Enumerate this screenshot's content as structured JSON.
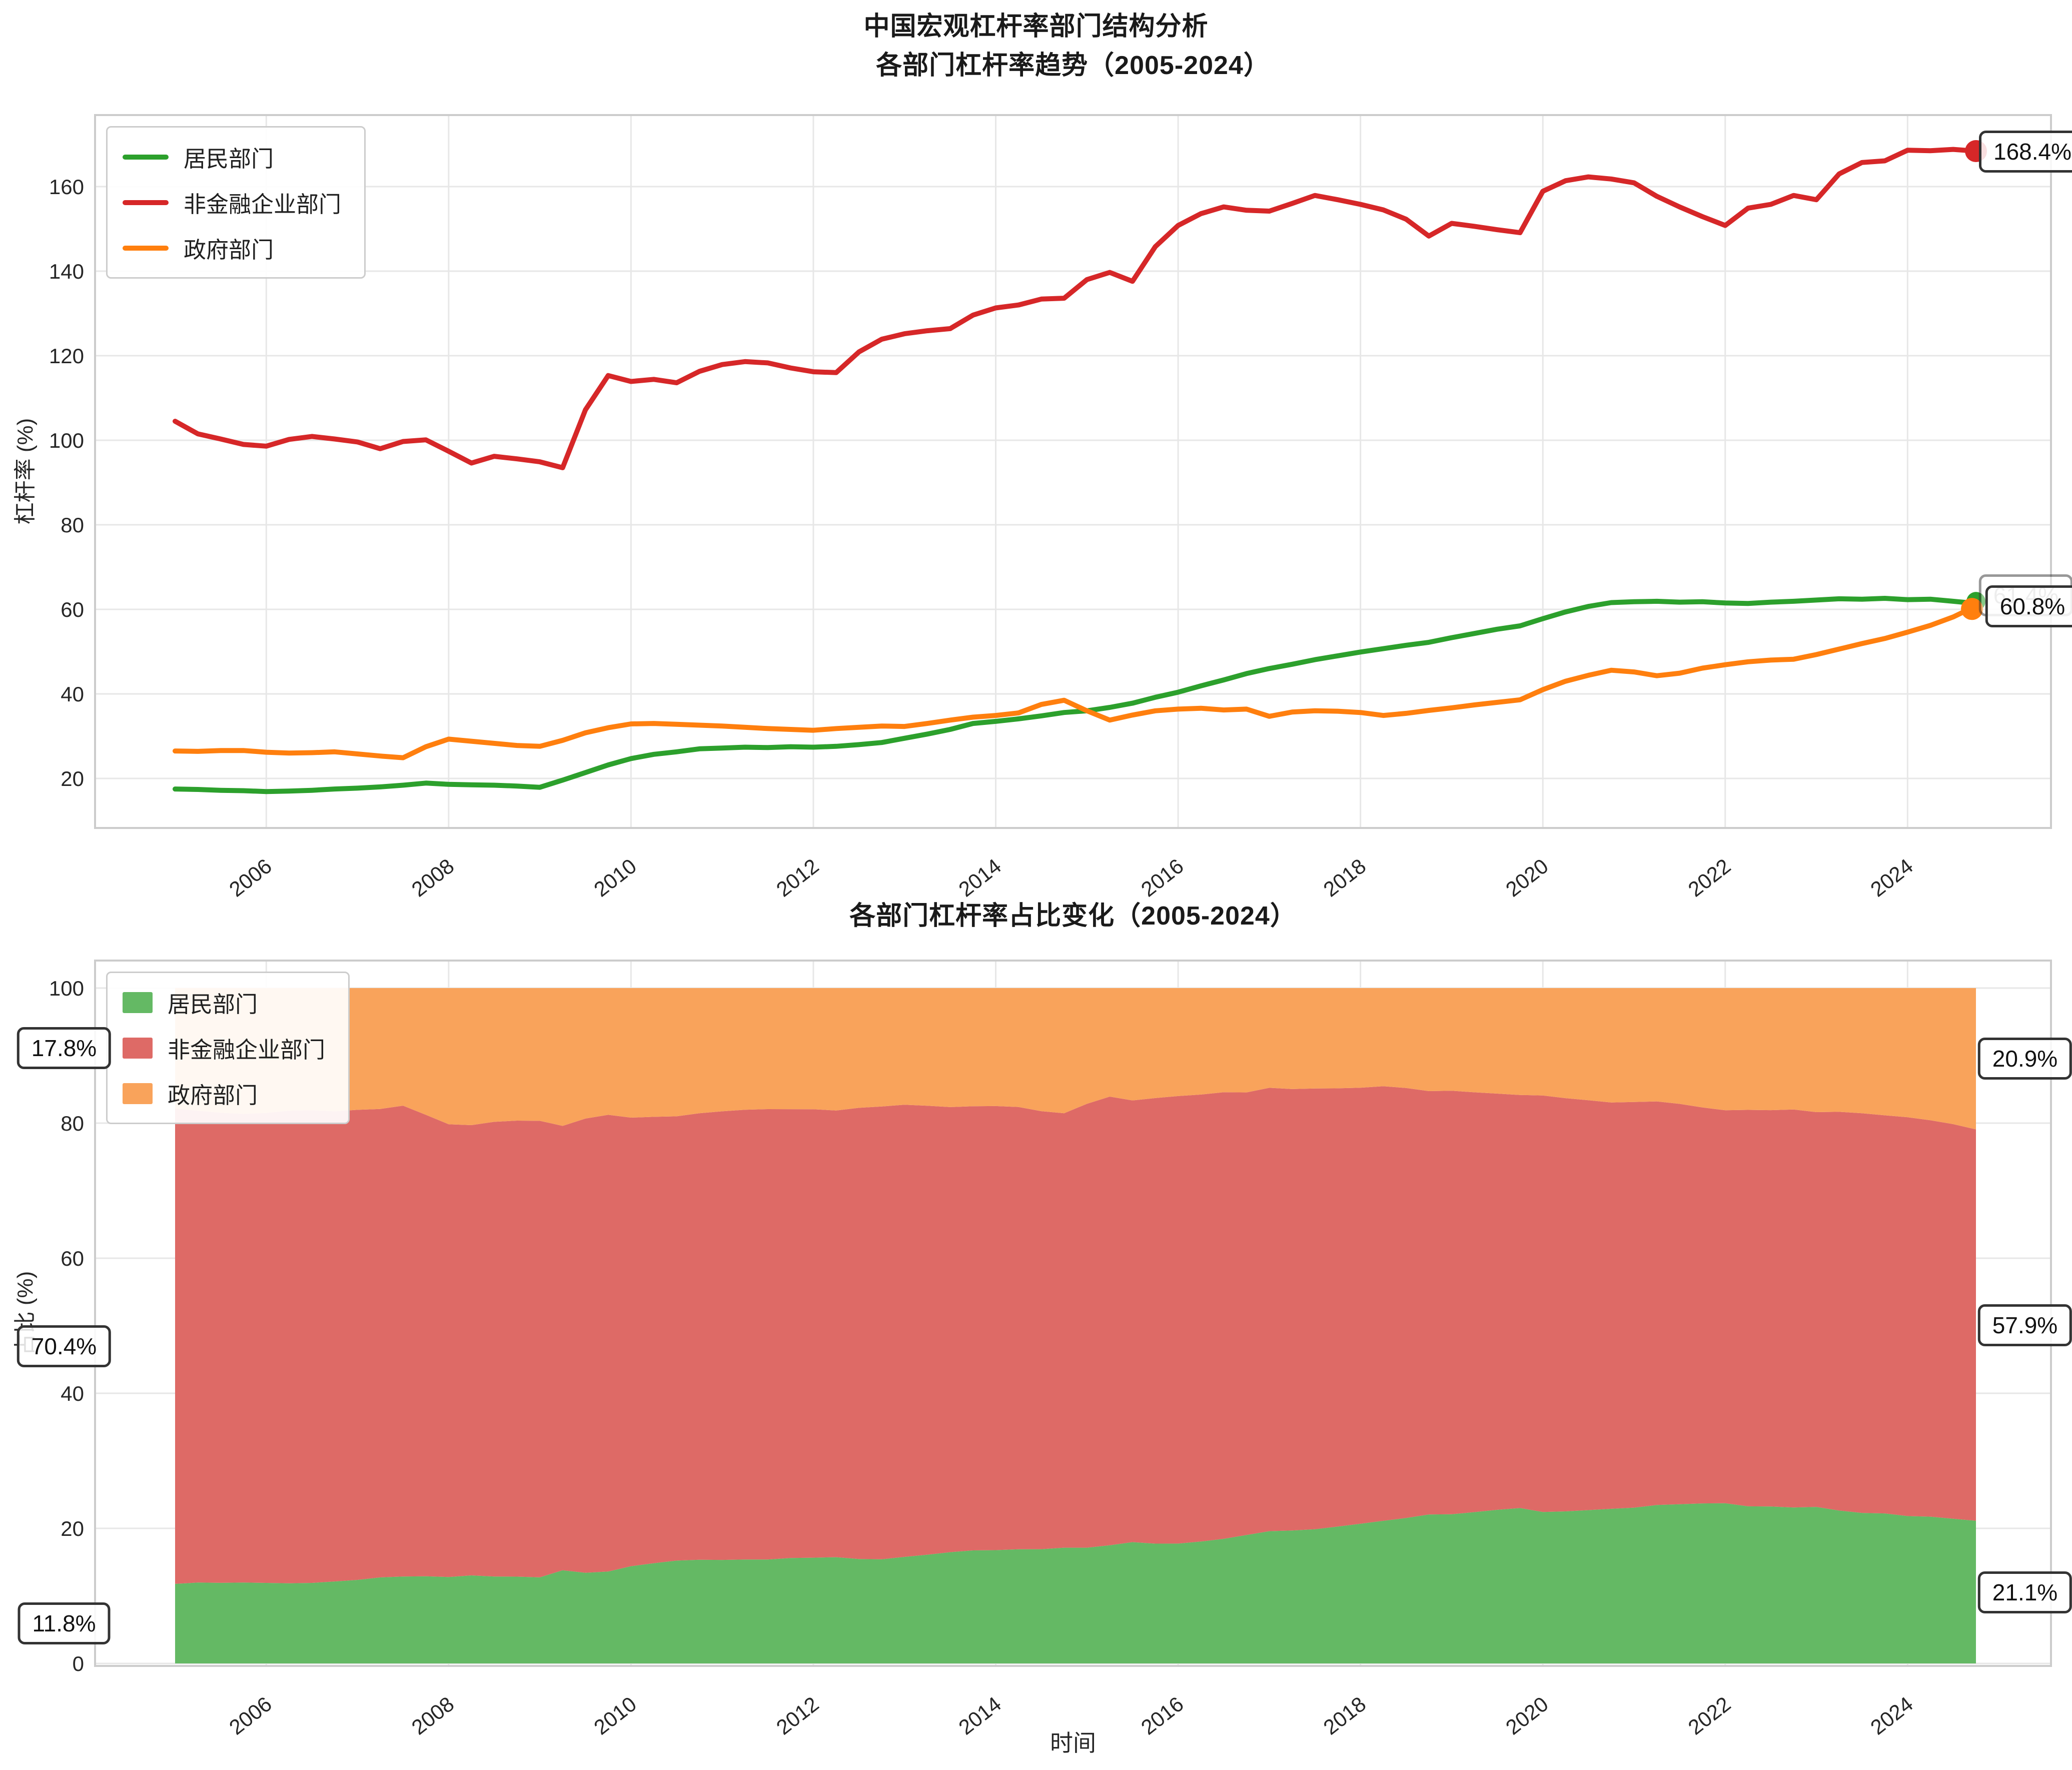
{
  "suptitle": "中国宏观杠杆率部门结构分析",
  "chart_data": [
    {
      "type": "line",
      "title": "各部门杠杆率趋势（2005-2024）",
      "ylabel": "杠杆率 (%)",
      "x_start": 2005.0,
      "x_step": 0.25,
      "x_ticks": [
        2006,
        2008,
        2010,
        2012,
        2014,
        2016,
        2018,
        2020,
        2022,
        2024
      ],
      "y_ticks": [
        20,
        40,
        60,
        80,
        100,
        120,
        140,
        160
      ],
      "xlim": [
        2004.12,
        2025.57
      ],
      "ylim": [
        8.3,
        176.9
      ],
      "grid": true,
      "legend_position": "upper-left",
      "series": [
        {
          "name": "居民部门",
          "color": "#2ca02c",
          "values": [
            17.5,
            17.4,
            17.2,
            17.1,
            16.9,
            17.0,
            17.2,
            17.5,
            17.7,
            18.0,
            18.4,
            18.9,
            18.6,
            18.5,
            18.4,
            18.2,
            17.9,
            19.6,
            21.4,
            23.2,
            24.7,
            25.7,
            26.3,
            27.0,
            27.2,
            27.4,
            27.3,
            27.5,
            27.4,
            27.6,
            28.0,
            28.5,
            29.5,
            30.5,
            31.6,
            33.0,
            33.5,
            34.1,
            34.8,
            35.6,
            36.0,
            36.8,
            37.8,
            39.2,
            40.4,
            41.9,
            43.3,
            44.8,
            46.0,
            47.0,
            48.1,
            49.0,
            49.9,
            50.7,
            51.5,
            52.2,
            53.3,
            54.3,
            55.3,
            56.1,
            57.8,
            59.4,
            60.7,
            61.6,
            61.8,
            61.9,
            61.7,
            61.8,
            61.5,
            61.4,
            61.7,
            61.9,
            62.2,
            62.5,
            62.4,
            62.6,
            62.3,
            62.4,
            61.9,
            61.4
          ]
        },
        {
          "name": "非金融企业部门",
          "color": "#d62728",
          "values": [
            104.5,
            101.5,
            100.3,
            99.0,
            98.6,
            100.2,
            100.9,
            100.3,
            99.6,
            98.0,
            99.7,
            100.1,
            97.4,
            94.6,
            96.2,
            95.6,
            94.9,
            93.5,
            107.2,
            115.3,
            113.9,
            114.4,
            113.6,
            116.3,
            117.9,
            118.6,
            118.3,
            117.1,
            116.2,
            116.0,
            120.9,
            123.9,
            125.2,
            125.9,
            126.4,
            129.6,
            131.3,
            132.0,
            133.4,
            133.6,
            138.0,
            139.7,
            137.6,
            145.8,
            150.8,
            153.6,
            155.2,
            154.4,
            154.2,
            156.0,
            157.9,
            156.9,
            155.8,
            154.5,
            152.3,
            148.3,
            151.3,
            150.6,
            149.8,
            149.1,
            158.9,
            161.4,
            162.3,
            161.8,
            160.9,
            157.7,
            155.2,
            152.9,
            150.8,
            154.9,
            155.8,
            157.9,
            156.9,
            163.0,
            165.7,
            166.1,
            168.6,
            168.5,
            168.8,
            168.4
          ]
        },
        {
          "name": "政府部门",
          "color": "#ff7f0e",
          "values": [
            26.5,
            26.4,
            26.6,
            26.6,
            26.2,
            26.0,
            26.1,
            26.3,
            25.8,
            25.3,
            24.9,
            27.5,
            29.3,
            28.8,
            28.3,
            27.8,
            27.6,
            29.0,
            30.8,
            32.0,
            32.9,
            33.0,
            32.8,
            32.6,
            32.4,
            32.1,
            31.8,
            31.6,
            31.4,
            31.8,
            32.1,
            32.4,
            32.3,
            33.0,
            33.8,
            34.5,
            34.9,
            35.5,
            37.5,
            38.5,
            36.0,
            33.8,
            35.0,
            36.0,
            36.4,
            36.6,
            36.2,
            36.4,
            34.7,
            35.7,
            36.0,
            35.9,
            35.6,
            34.9,
            35.4,
            36.1,
            36.7,
            37.4,
            38.0,
            38.6,
            41.0,
            43.0,
            44.4,
            45.6,
            45.2,
            44.3,
            44.9,
            46.1,
            46.9,
            47.6,
            48.0,
            48.2,
            49.3,
            50.6,
            51.9,
            53.1,
            54.6,
            56.2,
            58.2,
            60.8
          ]
        }
      ],
      "annotations": {
        "corporate_end": "168.4%",
        "household_end": "61.4%",
        "government_end": "60.8%"
      }
    },
    {
      "type": "area",
      "title": "各部门杠杆率占比变化（2005-2024）",
      "ylabel": "占比 (%)",
      "xlabel": "时间",
      "x_ticks": [
        2006,
        2008,
        2010,
        2012,
        2014,
        2016,
        2018,
        2020,
        2022,
        2024
      ],
      "y_ticks": [
        0,
        20,
        40,
        60,
        80,
        100
      ],
      "xlim": [
        2004.12,
        2025.57
      ],
      "ylim": [
        0,
        104
      ],
      "grid": true,
      "legend_position": "upper-left",
      "stack_note": "shares computed from chart_data[0].series values, normalized to 100%",
      "stack_order": [
        "居民部门",
        "非金融企业部门",
        "政府部门"
      ],
      "fills": [
        {
          "name": "居民部门",
          "color": "#64b964"
        },
        {
          "name": "非金融企业部门",
          "color": "#de6a66"
        },
        {
          "name": "政府部门",
          "color": "#f9a35b"
        }
      ],
      "annotations": {
        "left": {
          "government": "17.8%",
          "corporate": "70.4%",
          "household": "11.8%"
        },
        "right": {
          "government": "20.9%",
          "corporate": "57.9%",
          "household": "21.1%"
        }
      }
    }
  ],
  "style": {
    "grid_color": "#e7e7e7",
    "border_color": "#cccccc",
    "tick_color": "#262626",
    "annotation_border": "#333333"
  }
}
